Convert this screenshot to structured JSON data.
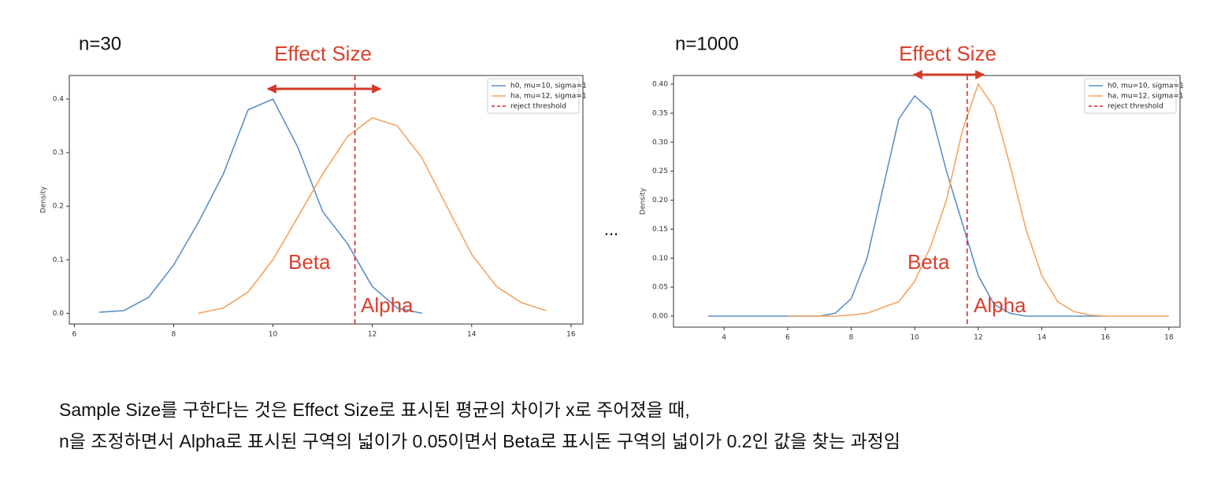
{
  "chart_data": [
    {
      "type": "line",
      "title": "n=30",
      "ylabel": "Density",
      "x": [
        6.5,
        7,
        7.5,
        8,
        8.5,
        9,
        9.5,
        10,
        10.5,
        11,
        11.5,
        12,
        12.5,
        13,
        13.5,
        14,
        14.5,
        15,
        15.5
      ],
      "series": [
        {
          "name": "h0, mu=10, sigma=1",
          "color": "#5b8fc7",
          "values": [
            0.002,
            0.005,
            0.03,
            0.09,
            0.17,
            0.26,
            0.38,
            0.4,
            0.31,
            0.19,
            0.13,
            0.05,
            0.01,
            0.0,
            null,
            null,
            null,
            null,
            null
          ]
        },
        {
          "name": "ha, mu=12, sigma=1",
          "color": "#f4a460",
          "values": [
            null,
            null,
            null,
            null,
            0.0,
            0.01,
            0.04,
            0.1,
            0.18,
            0.26,
            0.33,
            0.365,
            0.35,
            0.29,
            0.2,
            0.11,
            0.05,
            0.02,
            0.005
          ]
        }
      ],
      "threshold": {
        "name": "reject threshold",
        "x": 11.65,
        "color": "#d62728"
      },
      "annotations": [
        "Effect Size",
        "Beta",
        "Alpha"
      ],
      "xlim": [
        5.9,
        16.24
      ],
      "xticks": [
        6,
        8,
        10,
        12,
        14,
        16
      ],
      "ylim": [
        -0.02,
        0.444
      ],
      "yticks": [
        {
          "value": 0,
          "label": "0.0"
        },
        0.1,
        0.2,
        0.3,
        0.4
      ],
      "legend": "upper right"
    },
    {
      "type": "line",
      "title": "n=1000",
      "ylabel": "Density",
      "x": [
        3,
        3.5,
        4,
        4.5,
        5,
        5.5,
        6,
        6.5,
        7,
        7.5,
        8,
        8.5,
        9,
        9.5,
        10,
        10.5,
        11,
        11.5,
        12,
        12.5,
        13,
        13.5,
        14,
        14.5,
        15,
        15.5,
        16,
        16.5,
        17,
        17.5,
        18
      ],
      "series": [
        {
          "name": "h0, mu=10, sigma=1",
          "color": "#5b8fc7",
          "values": [
            null,
            0,
            0,
            0,
            0,
            0,
            0,
            0,
            0,
            0.005,
            0.03,
            0.1,
            0.22,
            0.34,
            0.38,
            0.355,
            0.25,
            0.16,
            0.07,
            0.02,
            0.005,
            0,
            0,
            0,
            0,
            0,
            0,
            null,
            null,
            null,
            null
          ]
        },
        {
          "name": "ha, mu=12, sigma=1",
          "color": "#f4a460",
          "values": [
            null,
            null,
            null,
            null,
            null,
            null,
            0,
            0,
            0,
            0,
            0.002,
            0.005,
            0.015,
            0.025,
            0.06,
            0.12,
            0.2,
            0.32,
            0.4,
            0.36,
            0.26,
            0.15,
            0.07,
            0.025,
            0.008,
            0.002,
            0,
            0,
            0,
            0,
            0
          ]
        }
      ],
      "threshold": {
        "name": "reject threshold",
        "x": 11.65,
        "color": "#d62728"
      },
      "annotations": [
        "Effect Size",
        "Beta",
        "Alpha"
      ],
      "xlim": [
        2.41,
        18.35
      ],
      "xticks": [
        4,
        6,
        8,
        10,
        12,
        14,
        16,
        18
      ],
      "ylim": [
        -0.019,
        0.415
      ],
      "yticks": [
        {
          "value": 0,
          "label": "0.00"
        },
        {
          "value": 0.05,
          "label": "0.05"
        },
        {
          "value": 0.1,
          "label": "0.10"
        },
        {
          "value": 0.15,
          "label": "0.15"
        },
        {
          "value": 0.2,
          "label": "0.20"
        },
        {
          "value": 0.25,
          "label": "0.25"
        },
        {
          "value": 0.3,
          "label": "0.30"
        },
        {
          "value": 0.35,
          "label": "0.35"
        },
        {
          "value": 0.4,
          "label": "0.40"
        }
      ],
      "legend": "upper right"
    }
  ],
  "separator": "...",
  "caption": [
    "Sample Size를 구한다는 것은 Effect Size로 표시된 평균의 차이가 x로 주어졌을 때,",
    "n을 조정하면서 Alpha로 표시된 구역의 넓이가 0.05이면서 Beta로 표시돈 구역의 넓이가 0.2인 값을 찾는 과정임"
  ]
}
